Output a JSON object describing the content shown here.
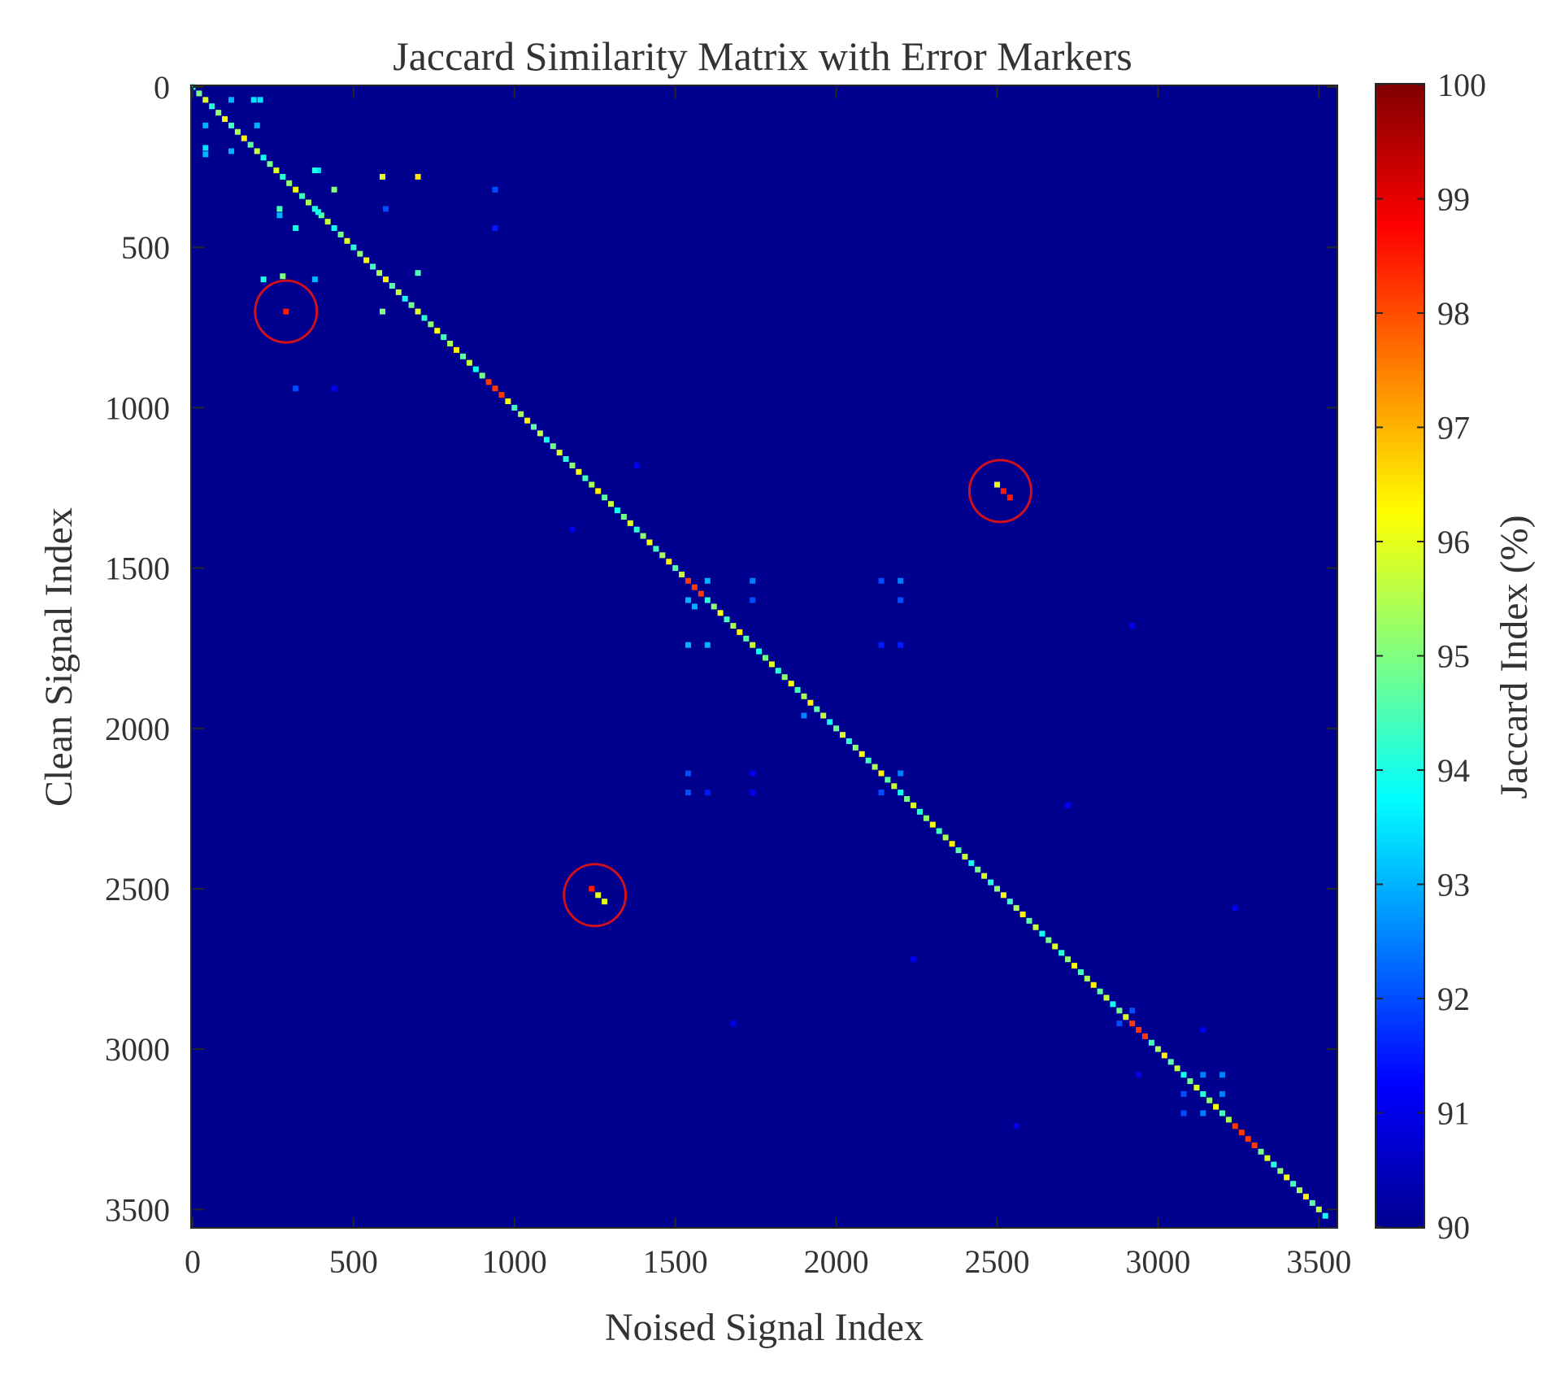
{
  "chart_data": {
    "type": "heatmap",
    "title": "Jaccard Similarity Matrix with Error Markers",
    "xlabel": "Noised Signal Index",
    "ylabel": "Clean Signal Index",
    "xlim": [
      0,
      3560
    ],
    "ylim": [
      0,
      3560
    ],
    "y_axis_reversed": true,
    "xticks": [
      0,
      500,
      1000,
      1500,
      2000,
      2500,
      3000,
      3500
    ],
    "yticks": [
      0,
      500,
      1000,
      1500,
      2000,
      2500,
      3000,
      3500
    ],
    "colorbar": {
      "label": "Jaccard Index (%)",
      "min": 90,
      "max": 100,
      "ticks": [
        90,
        91,
        92,
        93,
        94,
        95,
        96,
        97,
        98,
        99,
        100
      ],
      "colormap": "jet"
    },
    "background_value": 90,
    "diagonal": {
      "from": 0,
      "to": 3520,
      "step": 20,
      "typical_value": 95
    },
    "off_diagonal_points": [
      {
        "x": 120,
        "y": 40,
        "v": 93
      },
      {
        "x": 190,
        "y": 40,
        "v": 93.5
      },
      {
        "x": 210,
        "y": 40,
        "v": 93.5
      },
      {
        "x": 40,
        "y": 120,
        "v": 93
      },
      {
        "x": 200,
        "y": 120,
        "v": 93
      },
      {
        "x": 40,
        "y": 190,
        "v": 93.5
      },
      {
        "x": 40,
        "y": 210,
        "v": 93
      },
      {
        "x": 120,
        "y": 200,
        "v": 93
      },
      {
        "x": 390,
        "y": 260,
        "v": 93.5
      },
      {
        "x": 380,
        "y": 260,
        "v": 94
      },
      {
        "x": 590,
        "y": 280,
        "v": 96
      },
      {
        "x": 700,
        "y": 280,
        "v": 96.5
      },
      {
        "x": 440,
        "y": 320,
        "v": 95
      },
      {
        "x": 940,
        "y": 320,
        "v": 92
      },
      {
        "x": 270,
        "y": 380,
        "v": 94.5
      },
      {
        "x": 380,
        "y": 380,
        "v": 94
      },
      {
        "x": 390,
        "y": 390,
        "v": 94
      },
      {
        "x": 600,
        "y": 380,
        "v": 92
      },
      {
        "x": 270,
        "y": 400,
        "v": 93
      },
      {
        "x": 320,
        "y": 440,
        "v": 94
      },
      {
        "x": 940,
        "y": 440,
        "v": 91.5
      },
      {
        "x": 220,
        "y": 600,
        "v": 94
      },
      {
        "x": 280,
        "y": 590,
        "v": 95
      },
      {
        "x": 380,
        "y": 600,
        "v": 93
      },
      {
        "x": 700,
        "y": 580,
        "v": 94.5
      },
      {
        "x": 590,
        "y": 700,
        "v": 95
      },
      {
        "x": 290,
        "y": 700,
        "v": 98.5
      },
      {
        "x": 320,
        "y": 940,
        "v": 92
      },
      {
        "x": 440,
        "y": 940,
        "v": 91
      },
      {
        "x": 1380,
        "y": 1180,
        "v": 91
      },
      {
        "x": 1180,
        "y": 1380,
        "v": 91
      },
      {
        "x": 2500,
        "y": 1240,
        "v": 96
      },
      {
        "x": 2520,
        "y": 1260,
        "v": 98.5
      },
      {
        "x": 2540,
        "y": 1280,
        "v": 98.5
      },
      {
        "x": 1600,
        "y": 1540,
        "v": 93
      },
      {
        "x": 1740,
        "y": 1540,
        "v": 92.5
      },
      {
        "x": 2140,
        "y": 1540,
        "v": 92
      },
      {
        "x": 2200,
        "y": 1540,
        "v": 92.5
      },
      {
        "x": 1540,
        "y": 1600,
        "v": 93
      },
      {
        "x": 1560,
        "y": 1620,
        "v": 93
      },
      {
        "x": 1740,
        "y": 1600,
        "v": 92
      },
      {
        "x": 2200,
        "y": 1600,
        "v": 92
      },
      {
        "x": 1540,
        "y": 1740,
        "v": 93
      },
      {
        "x": 1600,
        "y": 1740,
        "v": 93
      },
      {
        "x": 2140,
        "y": 1740,
        "v": 91.5
      },
      {
        "x": 2200,
        "y": 1740,
        "v": 91.5
      },
      {
        "x": 2920,
        "y": 1680,
        "v": 91
      },
      {
        "x": 1900,
        "y": 1960,
        "v": 92.5
      },
      {
        "x": 1540,
        "y": 2140,
        "v": 92
      },
      {
        "x": 1740,
        "y": 2140,
        "v": 91
      },
      {
        "x": 2200,
        "y": 2140,
        "v": 92.5
      },
      {
        "x": 1540,
        "y": 2200,
        "v": 92
      },
      {
        "x": 1600,
        "y": 2200,
        "v": 91.5
      },
      {
        "x": 2140,
        "y": 2200,
        "v": 92
      },
      {
        "x": 1740,
        "y": 2200,
        "v": 91
      },
      {
        "x": 2720,
        "y": 2240,
        "v": 91
      },
      {
        "x": 1240,
        "y": 2500,
        "v": 98.5
      },
      {
        "x": 1260,
        "y": 2520,
        "v": 96
      },
      {
        "x": 1280,
        "y": 2540,
        "v": 96
      },
      {
        "x": 3240,
        "y": 2560,
        "v": 91
      },
      {
        "x": 2240,
        "y": 2720,
        "v": 91
      },
      {
        "x": 1680,
        "y": 2920,
        "v": 91
      },
      {
        "x": 2880,
        "y": 2920,
        "v": 92
      },
      {
        "x": 2920,
        "y": 2880,
        "v": 92
      },
      {
        "x": 3140,
        "y": 2940,
        "v": 91
      },
      {
        "x": 2940,
        "y": 3080,
        "v": 91
      },
      {
        "x": 3080,
        "y": 3140,
        "v": 92
      },
      {
        "x": 3140,
        "y": 3080,
        "v": 92.5
      },
      {
        "x": 3200,
        "y": 3080,
        "v": 92.5
      },
      {
        "x": 3080,
        "y": 3200,
        "v": 92
      },
      {
        "x": 3200,
        "y": 3140,
        "v": 92.5
      },
      {
        "x": 3140,
        "y": 3200,
        "v": 92.5
      },
      {
        "x": 2560,
        "y": 3240,
        "v": 91
      }
    ],
    "error_markers": [
      {
        "x": 290,
        "y": 700
      },
      {
        "x": 2510,
        "y": 1260
      },
      {
        "x": 1250,
        "y": 2520
      }
    ]
  }
}
